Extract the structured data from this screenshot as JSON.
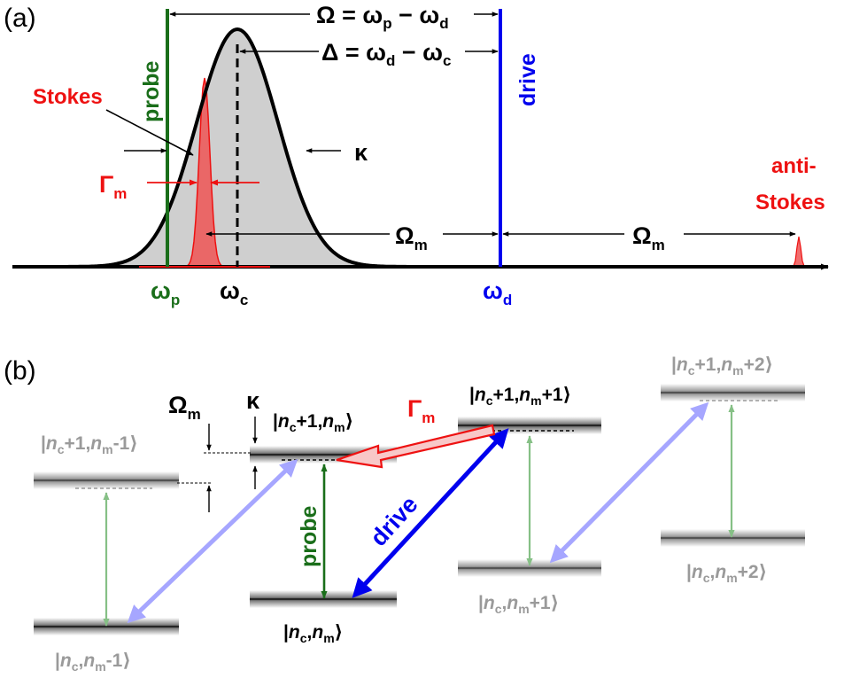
{
  "panels": {
    "a": "(a)",
    "b": "(b)"
  },
  "panel_a": {
    "peaks": {
      "stokes": "Stokes",
      "anti_stokes_line1": "anti-",
      "anti_stokes_line2": "Stokes"
    },
    "lines": {
      "probe": "probe",
      "drive": "drive"
    },
    "widths": {
      "cavity": "κ",
      "mechanical": "Γ",
      "mechanical_sub": "m"
    },
    "detunings": {
      "omega": "Ω = ω",
      "omega_mid": " − ω",
      "omega_sub1": "p",
      "omega_sub2": "d",
      "delta": "Δ = ω",
      "delta_mid": " − ω",
      "delta_sub1": "d",
      "delta_sub2": "c",
      "Omega_m": "Ω",
      "Omega_m_sub": "m"
    },
    "axis": {
      "wp": "ω",
      "wp_sub": "p",
      "wc": "ω",
      "wc_sub": "c",
      "wd": "ω",
      "wd_sub": "d"
    }
  },
  "panel_b": {
    "states": {
      "s1": {
        "pre": "|",
        "n1": "n",
        "s1": "c",
        "mid": "+1,",
        "n2": "n",
        "s2": "m",
        "post": "-1⟩"
      },
      "s2": {
        "pre": "|",
        "n1": "n",
        "s1": "c",
        "mid": ",",
        "n2": "n",
        "s2": "m",
        "post": "-1⟩"
      },
      "s3": {
        "pre": "|",
        "n1": "n",
        "s1": "c",
        "mid": "+1,",
        "n2": "n",
        "s2": "m",
        "post": "⟩"
      },
      "s4": {
        "pre": "|",
        "n1": "n",
        "s1": "c",
        "mid": ",",
        "n2": "n",
        "s2": "m",
        "post": "⟩"
      },
      "s5": {
        "pre": "|",
        "n1": "n",
        "s1": "c",
        "mid": "+1,",
        "n2": "n",
        "s2": "m",
        "post": "+1⟩"
      },
      "s6": {
        "pre": "|",
        "n1": "n",
        "s1": "c",
        "mid": ",",
        "n2": "n",
        "s2": "m",
        "post": "+1⟩"
      },
      "s7": {
        "pre": "|",
        "n1": "n",
        "s1": "c",
        "mid": "+1,",
        "n2": "n",
        "s2": "m",
        "post": "+2⟩"
      },
      "s8": {
        "pre": "|",
        "n1": "n",
        "s1": "c",
        "mid": ",",
        "n2": "n",
        "s2": "m",
        "post": "+2⟩"
      }
    },
    "labels": {
      "Omega_m": "Ω",
      "Omega_m_sub": "m",
      "kappa": "κ",
      "Gamma_m": "Γ",
      "Gamma_m_sub": "m",
      "probe": "probe",
      "drive": "drive"
    }
  },
  "colors": {
    "probe": "#1a6e1a",
    "drive": "#0000ee",
    "stokes": "#ee1111",
    "cavity_fill": "#cfcfcf",
    "faded_green": "#86c086",
    "faded_blue": "#a6a6ff",
    "gray_text": "#9a9a9a"
  }
}
